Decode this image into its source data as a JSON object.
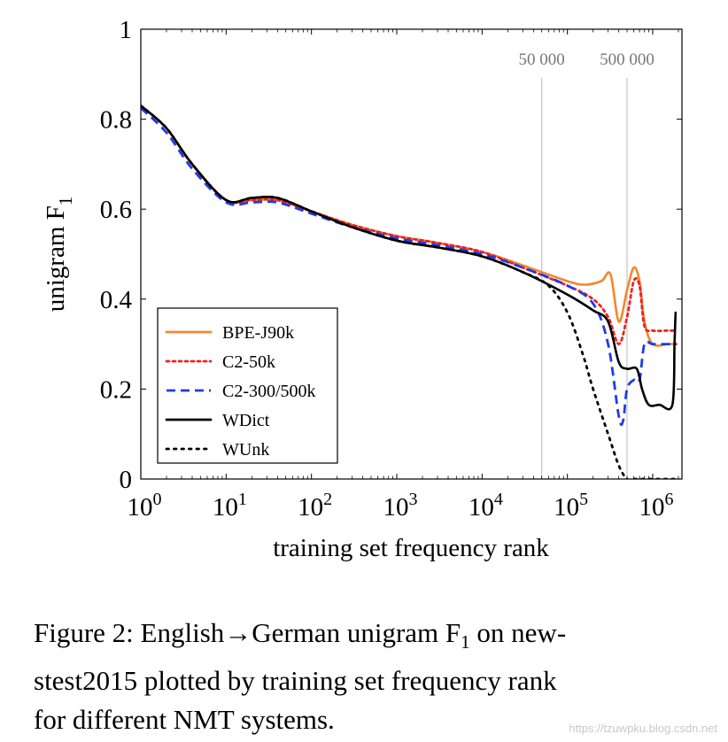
{
  "chart_data": {
    "type": "line",
    "xlabel": "training set frequency rank",
    "ylabel": "unigram F",
    "ylabel_subscript": "1",
    "x_scale": "log",
    "xlim": [
      1,
      2200000
    ],
    "ylim": [
      0,
      1
    ],
    "x_ticks": [
      {
        "value": 1,
        "base": "10",
        "exp": "0"
      },
      {
        "value": 10,
        "base": "10",
        "exp": "1"
      },
      {
        "value": 100,
        "base": "10",
        "exp": "2"
      },
      {
        "value": 1000,
        "base": "10",
        "exp": "3"
      },
      {
        "value": 10000,
        "base": "10",
        "exp": "4"
      },
      {
        "value": 100000,
        "base": "10",
        "exp": "5"
      },
      {
        "value": 1000000,
        "base": "10",
        "exp": "6"
      }
    ],
    "y_ticks": [
      {
        "value": 0,
        "label": "0"
      },
      {
        "value": 0.2,
        "label": "0.2"
      },
      {
        "value": 0.4,
        "label": "0.4"
      },
      {
        "value": 0.6,
        "label": "0.6"
      },
      {
        "value": 0.8,
        "label": "0.8"
      },
      {
        "value": 1,
        "label": "1"
      }
    ],
    "vertical_lines": [
      {
        "x": 50000,
        "label": "50 000"
      },
      {
        "x": 500000,
        "label": "500 000"
      }
    ],
    "legend_position": "bottom-left",
    "series": [
      {
        "name": "BPE-J90k",
        "color": "#f5862c",
        "dash": "solid",
        "x": [
          1,
          2,
          4,
          10,
          20,
          40,
          100,
          300,
          1000,
          3000,
          10000,
          30000,
          100000,
          160000,
          250000,
          320000,
          400000,
          500000,
          600000,
          700000,
          800000,
          1000000,
          1500000,
          1900000
        ],
        "y": [
          0.83,
          0.78,
          0.7,
          0.62,
          0.62,
          0.62,
          0.595,
          0.565,
          0.54,
          0.525,
          0.505,
          0.475,
          0.44,
          0.432,
          0.44,
          0.455,
          0.35,
          0.42,
          0.47,
          0.44,
          0.35,
          0.3,
          0.3,
          0.3
        ]
      },
      {
        "name": "C2-50k",
        "color": "#ee2222",
        "dash": "dotted",
        "x": [
          1,
          2,
          4,
          10,
          20,
          40,
          100,
          300,
          1000,
          3000,
          10000,
          30000,
          100000,
          200000,
          300000,
          400000,
          500000,
          600000,
          700000,
          800000,
          1000000,
          1500000,
          1900000
        ],
        "y": [
          0.83,
          0.78,
          0.7,
          0.62,
          0.62,
          0.62,
          0.595,
          0.565,
          0.54,
          0.525,
          0.505,
          0.47,
          0.43,
          0.4,
          0.36,
          0.3,
          0.36,
          0.44,
          0.43,
          0.34,
          0.33,
          0.33,
          0.33
        ]
      },
      {
        "name": "C2-300/500k",
        "color": "#1f3ae8",
        "dash": "dashed",
        "x": [
          1,
          2,
          4,
          10,
          20,
          40,
          100,
          300,
          1000,
          3000,
          10000,
          30000,
          100000,
          200000,
          300000,
          400000,
          450000,
          500000,
          600000,
          700000,
          800000,
          1000000,
          1500000,
          1900000
        ],
        "y": [
          0.825,
          0.77,
          0.69,
          0.615,
          0.615,
          0.615,
          0.59,
          0.56,
          0.535,
          0.52,
          0.5,
          0.47,
          0.43,
          0.39,
          0.3,
          0.14,
          0.13,
          0.2,
          0.22,
          0.22,
          0.3,
          0.3,
          0.3,
          0.3
        ]
      },
      {
        "name": "WDict",
        "color": "#000000",
        "dash": "solid",
        "x": [
          1,
          2,
          4,
          10,
          20,
          40,
          100,
          300,
          1000,
          3000,
          10000,
          30000,
          100000,
          200000,
          300000,
          400000,
          500000,
          650000,
          750000,
          900000,
          1200000,
          1700000,
          1800000,
          1850000
        ],
        "y": [
          0.83,
          0.78,
          0.7,
          0.62,
          0.625,
          0.625,
          0.595,
          0.56,
          0.53,
          0.515,
          0.495,
          0.46,
          0.41,
          0.375,
          0.35,
          0.26,
          0.245,
          0.245,
          0.2,
          0.165,
          0.165,
          0.165,
          0.3,
          0.37
        ]
      },
      {
        "name": "WUnk",
        "color": "#000000",
        "dash": "dotted2",
        "x": [
          1,
          2,
          4,
          10,
          20,
          40,
          100,
          300,
          1000,
          3000,
          10000,
          30000,
          60000,
          100000,
          150000,
          200000,
          300000,
          400000,
          500000,
          600000,
          800000,
          1900000
        ],
        "y": [
          0.83,
          0.78,
          0.7,
          0.62,
          0.625,
          0.625,
          0.595,
          0.56,
          0.53,
          0.515,
          0.495,
          0.46,
          0.43,
          0.37,
          0.28,
          0.2,
          0.1,
          0.03,
          0.0,
          0.0,
          0.0,
          0.0
        ]
      }
    ]
  },
  "caption": {
    "line1": "Figure 2: English→German unigram F",
    "line1_sub": "1",
    "line1_end": " on new-",
    "line2": "stest2015 plotted by training set frequency rank",
    "line3": "for different NMT systems."
  },
  "watermark": "https://tzuwpku.blog.csdn.net"
}
